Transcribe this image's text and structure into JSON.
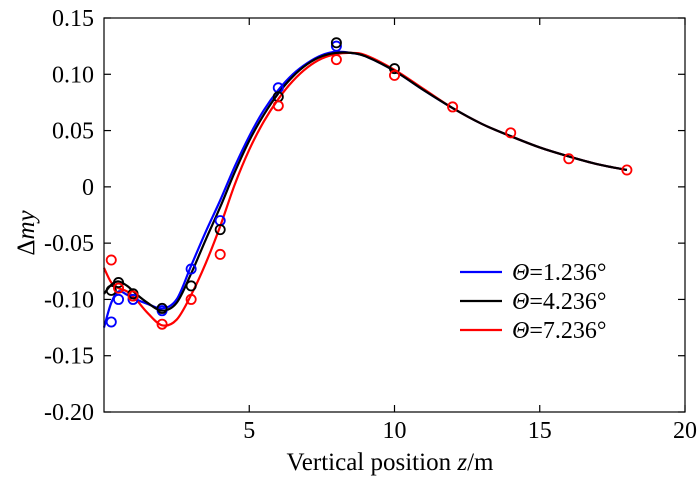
{
  "chart_data": {
    "type": "line",
    "title": "",
    "xlabel_parts": {
      "prefix": "Vertical position ",
      "var": "z",
      "suffix": "/m"
    },
    "ylabel_parts": {
      "prefix": "Δ",
      "var": "my"
    },
    "xlim": [
      0,
      20
    ],
    "ylim": [
      -0.2,
      0.15
    ],
    "xticks": [
      5,
      10,
      15,
      20
    ],
    "xtick_labels": [
      "5",
      "10",
      "15",
      "20"
    ],
    "yticks": [
      0.15,
      0.1,
      0.05,
      0,
      -0.05,
      -0.1,
      -0.15,
      -0.2
    ],
    "ytick_labels": [
      "0.15",
      "0.10",
      "0.05",
      "0",
      "-0.05",
      "-0.10",
      "-0.15",
      "-0.20"
    ],
    "grid": false,
    "legend_position": "lower-right",
    "series": [
      {
        "name": "Θ=1.236°",
        "legend_var": "Θ",
        "legend_value": "=1.236°",
        "color": "#0000ff",
        "line": {
          "x": [
            0,
            0.25,
            0.5,
            0.8,
            1.1,
            1.5,
            2.0,
            2.5,
            3.0,
            3.5,
            4.0,
            4.5,
            5.0,
            5.5,
            6.0,
            6.5,
            7.0,
            7.5,
            8.0,
            8.5,
            9.0,
            10.0,
            11.0,
            12.0,
            13.0,
            14.0,
            15.0,
            16.0,
            17.0,
            18.0
          ],
          "y": [
            -0.125,
            -0.103,
            -0.093,
            -0.096,
            -0.1,
            -0.104,
            -0.108,
            -0.1,
            -0.07,
            -0.04,
            -0.012,
            0.018,
            0.045,
            0.068,
            0.086,
            0.1,
            0.11,
            0.117,
            0.12,
            0.119,
            0.116,
            0.103,
            0.086,
            0.07,
            0.056,
            0.045,
            0.035,
            0.027,
            0.02,
            0.015
          ]
        },
        "markers": {
          "x": [
            0.25,
            0.5,
            1.0,
            2.0,
            3.0,
            4.0,
            6.0,
            8.0
          ],
          "y": [
            -0.12,
            -0.1,
            -0.1,
            -0.11,
            -0.073,
            -0.03,
            0.088,
            0.125
          ]
        }
      },
      {
        "name": "Θ=4.236°",
        "legend_var": "Θ",
        "legend_value": "=4.236°",
        "color": "#000000",
        "line": {
          "x": [
            0,
            0.25,
            0.5,
            0.8,
            1.1,
            1.5,
            2.0,
            2.5,
            3.0,
            3.5,
            4.0,
            4.5,
            5.0,
            5.5,
            6.0,
            6.5,
            7.0,
            7.5,
            8.0,
            8.5,
            9.0,
            10.0,
            11.0,
            12.0,
            13.0,
            14.0,
            15.0,
            16.0,
            17.0,
            18.0
          ],
          "y": [
            -0.095,
            -0.087,
            -0.084,
            -0.088,
            -0.095,
            -0.103,
            -0.11,
            -0.103,
            -0.077,
            -0.047,
            -0.018,
            0.013,
            0.041,
            0.064,
            0.083,
            0.098,
            0.109,
            0.116,
            0.119,
            0.119,
            0.116,
            0.103,
            0.086,
            0.07,
            0.056,
            0.045,
            0.035,
            0.027,
            0.02,
            0.015
          ]
        },
        "markers": {
          "x": [
            0.25,
            0.5,
            1.0,
            2.0,
            3.0,
            4.0,
            6.0,
            8.0,
            10.0
          ],
          "y": [
            -0.092,
            -0.085,
            -0.095,
            -0.108,
            -0.088,
            -0.038,
            0.08,
            0.128,
            0.105
          ]
        }
      },
      {
        "name": "Θ=7.236°",
        "legend_var": "Θ",
        "legend_value": "=7.236°",
        "color": "#ff0000",
        "line": {
          "x": [
            0,
            0.25,
            0.5,
            0.8,
            1.1,
            1.5,
            2.0,
            2.5,
            3.0,
            3.5,
            4.0,
            4.5,
            5.0,
            5.5,
            6.0,
            6.5,
            7.0,
            7.5,
            8.0,
            8.5,
            9.0,
            10.0,
            11.0,
            12.0,
            13.0,
            14.0,
            15.0,
            16.0,
            17.0,
            18.0
          ],
          "y": [
            -0.072,
            -0.085,
            -0.09,
            -0.093,
            -0.1,
            -0.112,
            -0.123,
            -0.118,
            -0.096,
            -0.068,
            -0.035,
            0.002,
            0.033,
            0.058,
            0.078,
            0.094,
            0.106,
            0.114,
            0.118,
            0.119,
            0.117,
            0.104,
            0.087,
            0.07,
            0.056,
            0.045,
            0.035,
            0.027,
            0.02,
            0.015
          ]
        },
        "markers": {
          "x": [
            0.25,
            0.5,
            1.0,
            2.0,
            3.0,
            4.0,
            6.0,
            8.0,
            10.0,
            12.0,
            14.0,
            16.0,
            18.0
          ],
          "y": [
            -0.065,
            -0.09,
            -0.097,
            -0.122,
            -0.1,
            -0.06,
            0.072,
            0.113,
            0.099,
            0.071,
            0.048,
            0.025,
            0.015
          ]
        }
      }
    ]
  }
}
